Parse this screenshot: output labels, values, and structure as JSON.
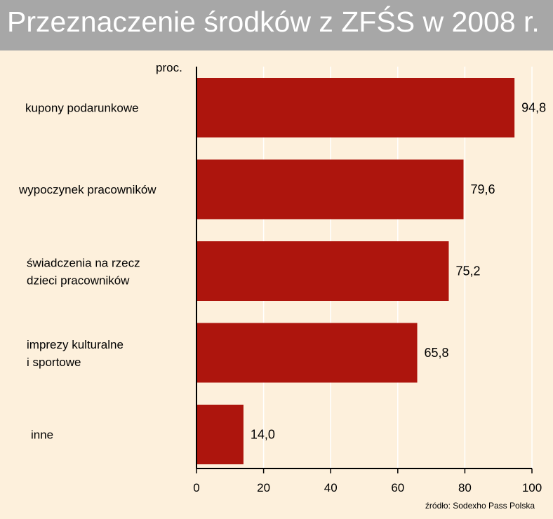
{
  "chart_data": {
    "type": "bar",
    "orientation": "horizontal",
    "title": "Przeznaczenie środków z ZFŚS w 2008 r.",
    "unit_label": "proc.",
    "source": "źródło: Sodexho Pass Polska",
    "categories": [
      [
        "kupony podarunkowe"
      ],
      [
        "wypoczynek pracowników"
      ],
      [
        "świadczenia na rzecz",
        "dzieci pracowników"
      ],
      [
        "imprezy kulturalne",
        "i sportowe"
      ],
      [
        "inne"
      ]
    ],
    "values": [
      94.8,
      79.6,
      75.2,
      65.8,
      14.0
    ],
    "value_labels": [
      "94,8",
      "79,6",
      "75,2",
      "65,8",
      "14,0"
    ],
    "xlim": [
      0,
      100
    ],
    "xticks": [
      0,
      20,
      40,
      60,
      80,
      100
    ],
    "grid": true,
    "colors": {
      "bar": "#ad150d",
      "background": "#fdf0dc",
      "title_bar": "#a7a7a7",
      "title_text": "#ffffff",
      "grid": "#ffffff"
    }
  }
}
